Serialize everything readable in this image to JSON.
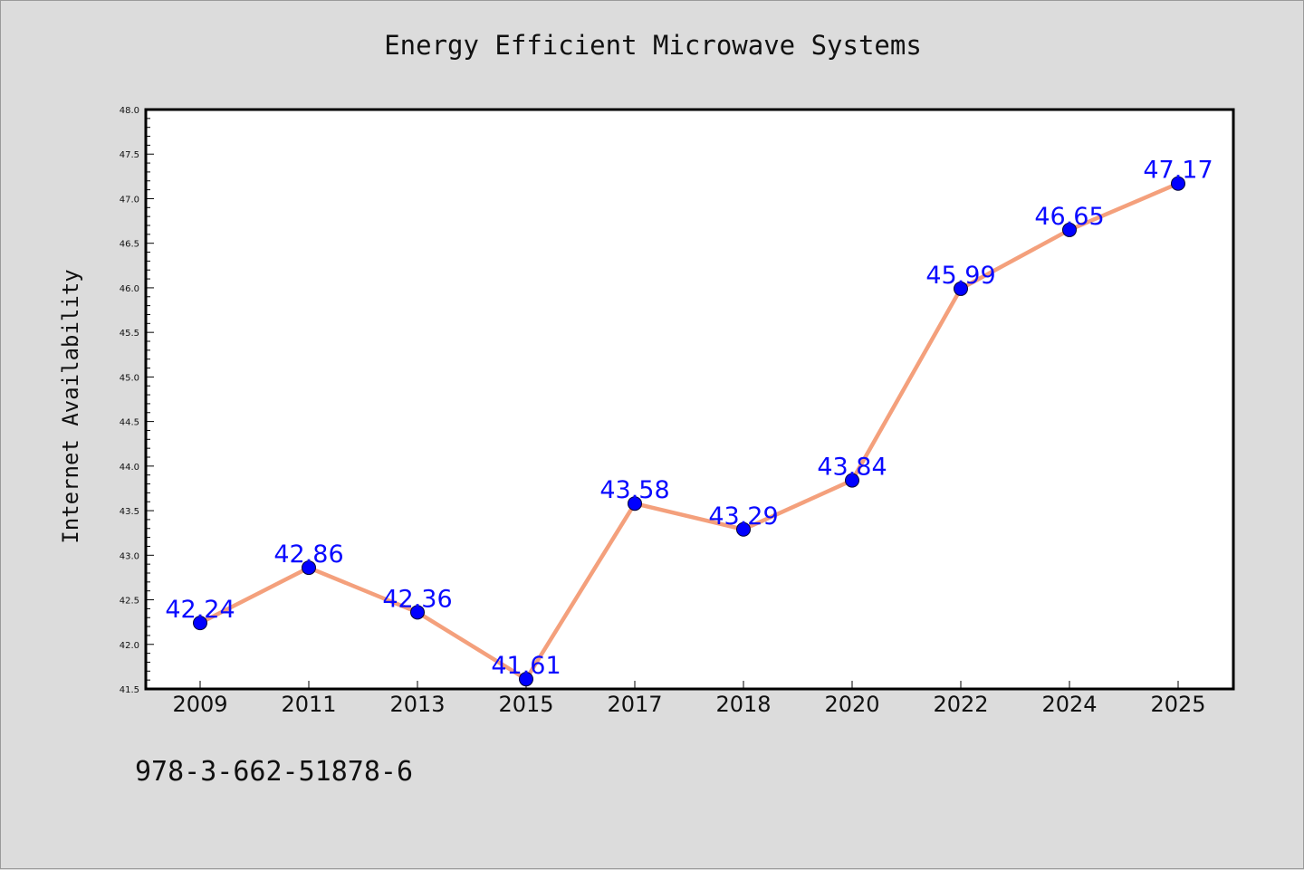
{
  "chart_data": {
    "type": "line",
    "title": "Energy Efficient Microwave Systems",
    "xlabel": "",
    "ylabel": "Internet Availability",
    "categories": [
      "2009",
      "2011",
      "2013",
      "2015",
      "2017",
      "2018",
      "2020",
      "2022",
      "2024",
      "2025"
    ],
    "values": [
      42.24,
      42.86,
      42.36,
      41.61,
      43.58,
      43.29,
      43.84,
      45.99,
      46.65,
      47.17
    ],
    "data_labels": [
      "42.24",
      "42.86",
      "42.36",
      "41.61",
      "43.58",
      "43.29",
      "43.84",
      "45.99",
      "46.65",
      "47.17"
    ],
    "ylim": [
      41.5,
      48.0
    ],
    "yticks": [
      "41.5",
      "42.0",
      "42.5",
      "43.0",
      "43.5",
      "44.0",
      "44.5",
      "45.0",
      "45.5",
      "46.0",
      "46.5",
      "47.0",
      "47.5",
      "48.0"
    ],
    "grid": false,
    "legend": "none",
    "line_color": "#f4a07c",
    "marker_color": "#0000ff",
    "label_color": "#0a0aff"
  },
  "footer": {
    "isbn": "978-3-662-51878-6"
  }
}
